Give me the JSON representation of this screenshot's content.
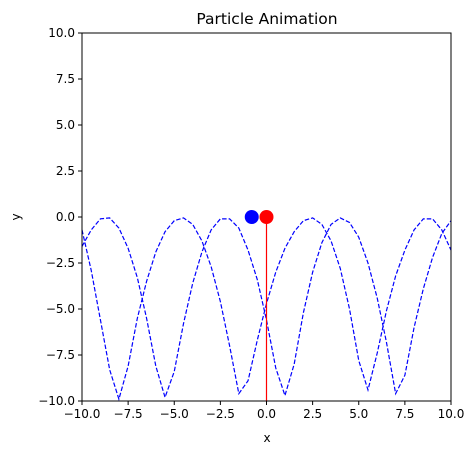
{
  "chart_data": {
    "type": "line",
    "title": "Particle Animation",
    "xlabel": "x",
    "ylabel": "y",
    "xlim": [
      -10,
      10
    ],
    "ylim": [
      -10,
      10
    ],
    "xticks": [
      "−10.0",
      "−7.5",
      "−5.0",
      "−2.5",
      "0.0",
      "2.5",
      "5.0",
      "7.5",
      "10.0"
    ],
    "yticks": [
      "−10.0",
      "−7.5",
      "−5.0",
      "−2.5",
      "0.0",
      "2.5",
      "5.0",
      "7.5",
      "10.0"
    ],
    "grid": false,
    "series": [
      {
        "style": "dashed",
        "color": "#0000ff",
        "x": [
          -10,
          -9.5,
          -9,
          -8.5,
          -8,
          -7.5,
          -7,
          -6.5,
          -6,
          -5.5,
          -5,
          -4.5,
          -4,
          -3.5,
          -3,
          -2.5,
          -2,
          -1.5,
          -1,
          -0.5,
          0,
          0.5,
          1,
          1.5,
          2,
          2.5,
          3,
          3.5,
          4,
          4.5,
          5,
          5.5,
          6,
          6.5,
          7,
          7.5,
          8,
          8.5,
          9,
          9.5,
          10
        ],
        "y": [
          -1.6,
          -0.7,
          -0.1,
          -0.05,
          -0.6,
          -1.7,
          -3.3,
          -5.5,
          -8.1,
          -9.8,
          -8.4,
          -5.8,
          -3.6,
          -1.9,
          -0.7,
          -0.1,
          -0.1,
          -0.6,
          -1.8,
          -3.4,
          -5.6,
          -8.2,
          -9.7,
          -8.0,
          -5.2,
          -3.0,
          -1.4,
          -0.4,
          -0.05,
          -0.3,
          -1.1,
          -2.5,
          -4.4,
          -6.8,
          -9.6,
          -8.6,
          -6.0,
          -3.9,
          -2.2,
          -0.9,
          -0.2
        ]
      },
      {
        "style": "dashed",
        "color": "#0000ff",
        "x": [
          -10,
          -9.5,
          -9,
          -8.5,
          -8,
          -7.5,
          -7,
          -6.5,
          -6,
          -5.5,
          -5,
          -4.5,
          -4,
          -3.5,
          -3,
          -2.5,
          -2,
          -1.5,
          -1,
          -0.5,
          0,
          0.5,
          1,
          1.5,
          2,
          2.5,
          3,
          3.5,
          4,
          4.5,
          5,
          5.5,
          6,
          6.5,
          7,
          7.5,
          8,
          8.5,
          9,
          9.5,
          10
        ],
        "y": [
          -0.7,
          -2.9,
          -5.6,
          -8.3,
          -9.9,
          -8.1,
          -5.5,
          -3.5,
          -1.9,
          -0.8,
          -0.2,
          -0.05,
          -0.4,
          -1.3,
          -2.7,
          -4.6,
          -7.0,
          -9.6,
          -8.9,
          -6.7,
          -4.7,
          -3.0,
          -1.7,
          -0.8,
          -0.2,
          -0.05,
          -0.4,
          -1.3,
          -2.8,
          -5.0,
          -7.8,
          -9.4,
          -7.4,
          -5.1,
          -3.2,
          -1.8,
          -0.7,
          -0.1,
          -0.1,
          -0.7,
          -1.8
        ]
      },
      {
        "style": "solid",
        "color": "#ff0000",
        "x": [
          0,
          0
        ],
        "y": [
          0,
          -10
        ]
      }
    ],
    "points": [
      {
        "x": -0.8,
        "y": 0.0,
        "color": "#0000ff"
      },
      {
        "x": 0.0,
        "y": 0.0,
        "color": "#ff0000"
      }
    ]
  }
}
